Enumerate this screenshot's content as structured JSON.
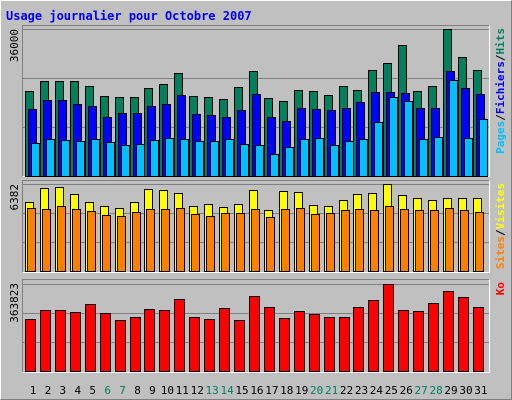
{
  "title": "Usage journalier pour Octobre 2007",
  "legend_separator": "/",
  "chart_data": [
    {
      "type": "bar",
      "ylim": [
        0,
        36000
      ],
      "yticks": [
        36000
      ],
      "grid_divisions": 3,
      "series": [
        {
          "name": "Hits",
          "color": "#00805c",
          "values": [
            20800,
            23300,
            23300,
            23300,
            22000,
            19600,
            19300,
            19300,
            21600,
            22500,
            25200,
            19600,
            19300,
            18900,
            21800,
            25700,
            19100,
            18400,
            21100,
            20800,
            19800,
            22000,
            21100,
            26000,
            27700,
            32100,
            20800,
            22000,
            36000,
            29100,
            26000
          ]
        },
        {
          "name": "Fichiers",
          "color": "#0000ff",
          "values": [
            16400,
            18600,
            18600,
            17600,
            17100,
            14400,
            15400,
            15400,
            17100,
            17600,
            19800,
            15200,
            14900,
            14400,
            16200,
            20100,
            14400,
            13500,
            16700,
            16400,
            16200,
            16700,
            18100,
            20600,
            20600,
            20300,
            16700,
            16700,
            25700,
            21600,
            20100
          ]
        },
        {
          "name": "Pages",
          "color": "#00c0ff",
          "values": [
            8100,
            9100,
            8800,
            8600,
            9100,
            8300,
            7600,
            7800,
            8800,
            9300,
            9100,
            8600,
            8600,
            9100,
            7800,
            7600,
            5400,
            7100,
            9100,
            9300,
            7600,
            8600,
            9100,
            13200,
            19300,
            18400,
            9100,
            9600,
            23500,
            9300,
            14000
          ]
        }
      ]
    },
    {
      "type": "bar",
      "ylim": [
        0,
        6382
      ],
      "yticks": [
        6382
      ],
      "grid_divisions": 3,
      "series": [
        {
          "name": "Visites",
          "color": "#ffff00",
          "values": [
            5060,
            6090,
            6160,
            5650,
            5060,
            4770,
            4620,
            5060,
            6020,
            5940,
            5720,
            4770,
            4920,
            4700,
            4920,
            5940,
            4480,
            5870,
            5800,
            4840,
            4770,
            5210,
            5650,
            5720,
            6382,
            5580,
            5360,
            5210,
            5360,
            5360,
            5360
          ]
        },
        {
          "name": "Sites",
          "color": "#ff8000",
          "values": [
            4620,
            4550,
            4770,
            4550,
            4400,
            4110,
            4040,
            4330,
            4550,
            4550,
            4620,
            4180,
            4040,
            4260,
            4260,
            4550,
            3960,
            4550,
            4620,
            4180,
            4260,
            4480,
            4550,
            4480,
            4770,
            4550,
            4480,
            4480,
            4620,
            4480,
            4330
          ]
        }
      ]
    },
    {
      "type": "bar",
      "ylim": [
        0,
        363823
      ],
      "yticks": [
        363823
      ],
      "grid_divisions": 3,
      "categories": [
        "1",
        "2",
        "3",
        "4",
        "5",
        "6",
        "7",
        "8",
        "9",
        "10",
        "11",
        "12",
        "13",
        "14",
        "15",
        "16",
        "17",
        "18",
        "19",
        "20",
        "21",
        "22",
        "23",
        "24",
        "25",
        "26",
        "27",
        "28",
        "29",
        "30",
        "31"
      ],
      "category_colors": [
        "#000000",
        "#000000",
        "#000000",
        "#000000",
        "#000000",
        "#00805c",
        "#00805c",
        "#000000",
        "#000000",
        "#000000",
        "#000000",
        "#000000",
        "#00805c",
        "#00805c",
        "#000000",
        "#000000",
        "#000000",
        "#000000",
        "#000000",
        "#00805c",
        "#00805c",
        "#000000",
        "#000000",
        "#000000",
        "#000000",
        "#000000",
        "#00805c",
        "#00805c",
        "#000000",
        "#000000",
        "#000000"
      ],
      "series": [
        {
          "name": "Ko",
          "color": "#ff0000",
          "values": [
            217000,
            255000,
            255000,
            247000,
            280000,
            243000,
            213000,
            226000,
            259000,
            255000,
            301000,
            226000,
            217000,
            263000,
            213000,
            314000,
            268000,
            222000,
            251000,
            238000,
            226000,
            226000,
            268000,
            297000,
            363823,
            255000,
            251000,
            284000,
            335000,
            309000,
            268000
          ]
        }
      ]
    }
  ]
}
